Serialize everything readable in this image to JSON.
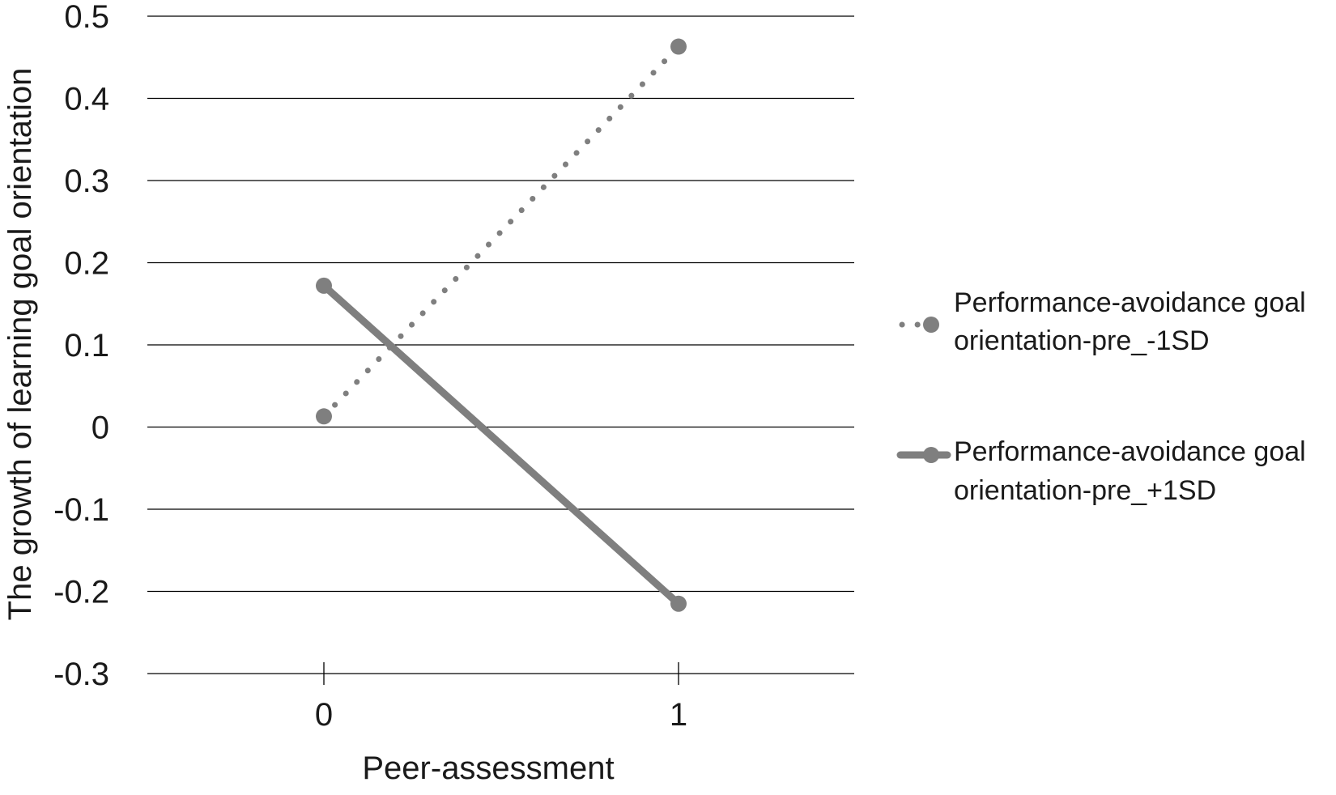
{
  "chart_data": {
    "type": "line",
    "title": "",
    "xlabel": "Peer-assessment",
    "ylabel": "The growth of learning goal orientation",
    "x": [
      0,
      1
    ],
    "x_tick_labels": [
      "0",
      "1"
    ],
    "ylim": [
      -0.3,
      0.5
    ],
    "y_ticks": [
      -0.3,
      -0.2,
      -0.1,
      0,
      0.1,
      0.2,
      0.3,
      0.4,
      0.5
    ],
    "y_tick_labels": [
      "-0.3",
      "-0.2",
      "-0.1",
      "0",
      "0.1",
      "0.2",
      "0.3",
      "0.4",
      "0.5"
    ],
    "grid": true,
    "legend_position": "right",
    "series": [
      {
        "name_lines": [
          "Performance-avoidance goal",
          "orientation-pre_-1SD"
        ],
        "values": [
          0.013,
          0.463
        ],
        "style": "dotted",
        "color": "#7f7f7f"
      },
      {
        "name_lines": [
          "Performance-avoidance goal",
          "orientation-pre_+1SD"
        ],
        "values": [
          0.172,
          -0.215
        ],
        "style": "solid",
        "color": "#7f7f7f"
      }
    ]
  }
}
